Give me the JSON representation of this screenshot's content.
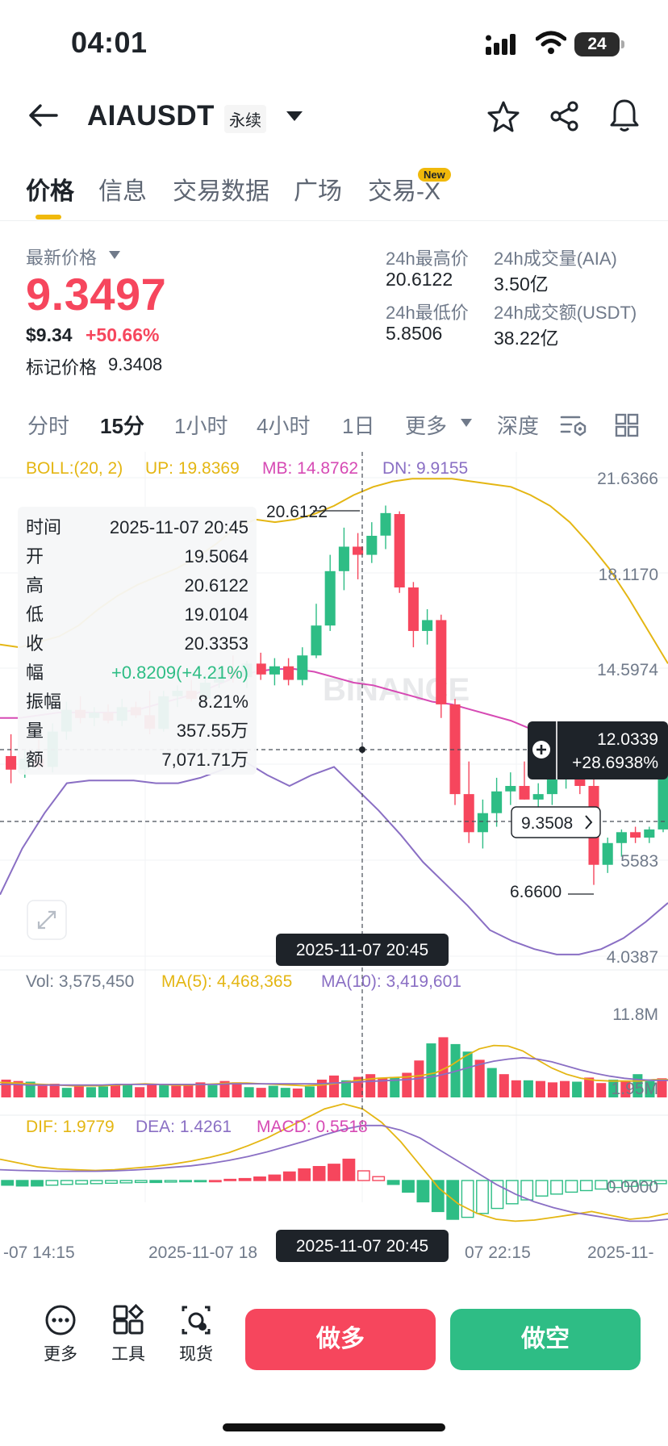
{
  "status": {
    "time": "04:01",
    "battery": "24"
  },
  "header": {
    "title": "AIAUSDT",
    "tag": "永续"
  },
  "tabs": [
    "价格",
    "信息",
    "交易数据",
    "广场",
    "交易-X"
  ],
  "new_badge": "New",
  "price": {
    "label": "最新价格",
    "last": "9.3497",
    "usd": "$9.34",
    "change": "+50.66%",
    "mark_label": "标记价格",
    "mark": "9.3408"
  },
  "stats": {
    "high_label": "24h最高价",
    "high": "20.6122",
    "low_label": "24h最低价",
    "low": "5.8506",
    "vol_label": "24h成交量(AIA)",
    "vol": "3.50亿",
    "amt_label": "24h成交额(USDT)",
    "amt": "38.22亿"
  },
  "intervals": [
    "分时",
    "15分",
    "1小时",
    "4小时",
    "1日",
    "更多",
    "深度"
  ],
  "boll": {
    "label": "BOLL:(20, 2)",
    "up": "UP: 19.8369",
    "mb": "MB: 14.8762",
    "dn": "DN: 9.9155"
  },
  "axis": {
    "p1": "21.6366",
    "p2": "18.1170",
    "p3": "14.5974",
    "p4": "5583",
    "p5": "4.0387",
    "v1": "11.8M",
    "v2": "1.95M",
    "m1": "0.0000"
  },
  "chart_labels": {
    "max": "20.6122",
    "min": "6.6600",
    "current": "9.3508",
    "cross_price": "12.0339",
    "cross_pct": "+28.6938%",
    "watermark": "BINANCE"
  },
  "info": {
    "rows": [
      {
        "k": "时间",
        "v": "2025-11-07 20:45"
      },
      {
        "k": "开",
        "v": "19.5064"
      },
      {
        "k": "高",
        "v": "20.6122"
      },
      {
        "k": "低",
        "v": "19.0104"
      },
      {
        "k": "收",
        "v": "20.3353"
      },
      {
        "k": "幅",
        "v": "+0.8209(+4.21%)"
      },
      {
        "k": "振幅",
        "v": "8.21%"
      },
      {
        "k": "量",
        "v": "357.55万"
      },
      {
        "k": "额",
        "v": "7,071.71万"
      }
    ]
  },
  "crosshair_time": "2025-11-07 20:45",
  "vol_legend": {
    "vol": "Vol: 3,575,450",
    "ma5": "MA(5): 4,468,365",
    "ma10": "MA(10): 3,419,601"
  },
  "macd_legend": {
    "dif": "DIF: 1.9779",
    "dea": "DEA: 1.4261",
    "macd": "MACD: 0.5518"
  },
  "time_axis": [
    "-07 14:15",
    "2025-11-07 18",
    "07 22:15",
    "2025-11-"
  ],
  "bottom": {
    "more": "更多",
    "tools": "工具",
    "spot": "现货",
    "long": "做多",
    "short": "做空"
  },
  "colors": {
    "up": "#2ebd85",
    "down": "#f6465d",
    "boll_up": "#e4b613",
    "boll_mb": "#d64ab4",
    "boll_dn": "#8a6fc4"
  },
  "chart_data": {
    "type": "candlestick",
    "candles": [
      {
        "o": 11.4,
        "h": 12.2,
        "l": 10.4,
        "c": 10.9
      },
      {
        "o": 10.9,
        "h": 11.6,
        "l": 10.6,
        "c": 11.3
      },
      {
        "o": 11.3,
        "h": 12.0,
        "l": 10.9,
        "c": 11.0
      },
      {
        "o": 11.0,
        "h": 12.6,
        "l": 10.8,
        "c": 12.3
      },
      {
        "o": 12.3,
        "h": 13.4,
        "l": 12.0,
        "c": 13.1
      },
      {
        "o": 13.1,
        "h": 13.6,
        "l": 12.6,
        "c": 12.8
      },
      {
        "o": 12.8,
        "h": 13.2,
        "l": 12.5,
        "c": 13.0
      },
      {
        "o": 13.0,
        "h": 13.3,
        "l": 12.6,
        "c": 12.7
      },
      {
        "o": 12.7,
        "h": 13.5,
        "l": 12.5,
        "c": 13.2
      },
      {
        "o": 13.2,
        "h": 13.4,
        "l": 12.8,
        "c": 12.9
      },
      {
        "o": 12.9,
        "h": 13.8,
        "l": 12.2,
        "c": 12.4
      },
      {
        "o": 12.4,
        "h": 13.8,
        "l": 12.3,
        "c": 13.6
      },
      {
        "o": 13.6,
        "h": 14.0,
        "l": 13.2,
        "c": 13.8
      },
      {
        "o": 13.8,
        "h": 14.2,
        "l": 13.4,
        "c": 13.5
      },
      {
        "o": 13.5,
        "h": 14.4,
        "l": 13.2,
        "c": 14.1
      },
      {
        "o": 14.1,
        "h": 14.8,
        "l": 13.9,
        "c": 14.6
      },
      {
        "o": 14.6,
        "h": 15.1,
        "l": 14.1,
        "c": 14.3
      },
      {
        "o": 14.3,
        "h": 14.9,
        "l": 13.9,
        "c": 14.8
      },
      {
        "o": 14.8,
        "h": 15.2,
        "l": 14.2,
        "c": 14.4
      },
      {
        "o": 14.4,
        "h": 15.0,
        "l": 14.0,
        "c": 14.7
      },
      {
        "o": 14.7,
        "h": 15.0,
        "l": 14.0,
        "c": 14.2
      },
      {
        "o": 14.2,
        "h": 15.4,
        "l": 14.0,
        "c": 15.1
      },
      {
        "o": 15.1,
        "h": 17.0,
        "l": 15.0,
        "c": 16.2
      },
      {
        "o": 16.2,
        "h": 18.8,
        "l": 16.0,
        "c": 18.2
      },
      {
        "o": 18.2,
        "h": 19.8,
        "l": 17.5,
        "c": 19.1
      },
      {
        "o": 19.1,
        "h": 19.6,
        "l": 17.9,
        "c": 18.8
      },
      {
        "o": 18.8,
        "h": 20.0,
        "l": 18.5,
        "c": 19.5
      },
      {
        "o": 19.5064,
        "h": 20.6122,
        "l": 19.0104,
        "c": 20.3353
      },
      {
        "o": 20.3,
        "h": 20.4,
        "l": 17.4,
        "c": 17.6
      },
      {
        "o": 17.6,
        "h": 17.8,
        "l": 15.4,
        "c": 16.0
      },
      {
        "o": 16.0,
        "h": 16.8,
        "l": 15.5,
        "c": 16.4
      },
      {
        "o": 16.4,
        "h": 16.6,
        "l": 12.8,
        "c": 13.3
      },
      {
        "o": 13.3,
        "h": 13.5,
        "l": 9.6,
        "c": 10.0
      },
      {
        "o": 10.0,
        "h": 11.2,
        "l": 8.2,
        "c": 8.6
      },
      {
        "o": 8.6,
        "h": 9.8,
        "l": 8.0,
        "c": 9.3
      },
      {
        "o": 9.3,
        "h": 10.6,
        "l": 8.8,
        "c": 10.1
      },
      {
        "o": 10.1,
        "h": 10.8,
        "l": 9.6,
        "c": 10.3
      },
      {
        "o": 10.3,
        "h": 11.2,
        "l": 9.8,
        "c": 9.8
      },
      {
        "o": 9.8,
        "h": 10.4,
        "l": 9.2,
        "c": 10.0
      },
      {
        "o": 10.0,
        "h": 11.0,
        "l": 9.6,
        "c": 10.8
      },
      {
        "o": 10.8,
        "h": 11.4,
        "l": 10.2,
        "c": 10.9
      },
      {
        "o": 10.9,
        "h": 11.2,
        "l": 10.0,
        "c": 10.3
      },
      {
        "o": 10.3,
        "h": 10.6,
        "l": 6.66,
        "c": 7.4
      },
      {
        "o": 7.4,
        "h": 8.4,
        "l": 7.1,
        "c": 8.2
      },
      {
        "o": 8.2,
        "h": 8.7,
        "l": 7.7,
        "c": 8.6
      },
      {
        "o": 8.6,
        "h": 8.8,
        "l": 8.2,
        "c": 8.4
      },
      {
        "o": 8.4,
        "h": 8.8,
        "l": 8.2,
        "c": 8.7
      },
      {
        "o": 8.7,
        "h": 11.2,
        "l": 8.6,
        "c": 10.9
      },
      {
        "o": 10.9,
        "h": 11.3,
        "l": 9.2,
        "c": 9.35
      }
    ],
    "boll_up": [
      15.5,
      15.4,
      15.6,
      15.8,
      16.2,
      16.8,
      17.3,
      17.7,
      18.0,
      18.3,
      18.7,
      19.2,
      19.8,
      20.1,
      20.0,
      20.1,
      20.3,
      20.6,
      21.0,
      21.3,
      21.5,
      21.6,
      21.6,
      21.6,
      21.5,
      21.4,
      21.3,
      21.0,
      20.6,
      20.0,
      19.2,
      18.3,
      17.2,
      16.0,
      14.8
    ],
    "boll_mb": [
      12.8,
      12.8,
      12.9,
      13.0,
      13.0,
      13.0,
      13.0,
      13.1,
      13.3,
      13.5,
      13.7,
      14.0,
      14.3,
      14.5,
      14.6,
      14.6,
      14.5,
      14.3,
      14.1,
      14.0,
      13.8,
      13.6,
      13.4,
      13.3,
      13.1,
      12.9,
      12.7,
      12.4,
      12.1,
      11.8,
      11.5,
      11.2,
      11.0,
      10.8,
      10.6
    ],
    "boll_dn": [
      6.3,
      8.0,
      9.3,
      10.4,
      10.5,
      10.5,
      10.5,
      10.4,
      10.4,
      10.6,
      10.9,
      11.2,
      10.7,
      10.3,
      10.7,
      11.0,
      10.2,
      9.4,
      8.5,
      7.5,
      6.7,
      5.9,
      5.0,
      4.6,
      4.3,
      4.1,
      4.1,
      4.3,
      4.7,
      5.3,
      6.0
    ],
    "volumes": [
      2.6,
      2.4,
      2.3,
      1.7,
      2.0,
      1.4,
      1.6,
      1.5,
      1.6,
      1.9,
      2.0,
      1.5,
      2.0,
      1.8,
      1.7,
      2.0,
      2.2,
      1.8,
      2.4,
      2.2,
      1.5,
      1.4,
      1.7,
      1.4,
      1.3,
      1.6,
      2.6,
      3.2,
      2.5,
      3.0,
      3.4,
      2.9,
      3.0,
      3.6,
      5.4,
      7.9,
      8.8,
      7.8,
      6.7,
      5.5,
      4.3,
      3.4,
      2.5,
      2.5,
      2.4,
      2.2,
      2.4,
      2.3,
      2.9,
      2.1,
      2.6,
      2.4,
      3.4,
      2.4,
      2.8
    ],
    "macd_hist": [
      -0.12,
      -0.14,
      -0.14,
      -0.12,
      -0.1,
      -0.09,
      -0.08,
      -0.07,
      -0.06,
      -0.05,
      -0.05,
      -0.04,
      -0.03,
      -0.01,
      0.0,
      0.03,
      0.05,
      0.09,
      0.14,
      0.22,
      0.3,
      0.36,
      0.42,
      0.55,
      0.25,
      0.1,
      -0.1,
      -0.3,
      -0.55,
      -0.8,
      -1.0,
      -0.95,
      -0.85,
      -0.72,
      -0.6,
      -0.5,
      -0.4,
      -0.35,
      -0.3,
      -0.26,
      -0.22,
      -0.18,
      -0.15,
      -0.12,
      -0.08
    ]
  }
}
